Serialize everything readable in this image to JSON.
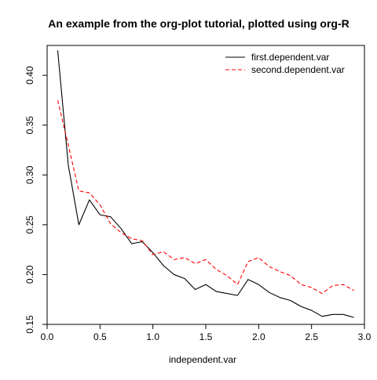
{
  "chart_data": {
    "type": "line",
    "title": "An example from the org-plot tutorial, plotted using org-R",
    "xlabel": "independent.var",
    "ylabel": "",
    "xlim": [
      0.0,
      3.0
    ],
    "ylim": [
      0.15,
      0.43
    ],
    "xticks": [
      0.0,
      0.5,
      1.0,
      1.5,
      2.0,
      2.5,
      3.0
    ],
    "xtick_labels": [
      "0.0",
      "0.5",
      "1.0",
      "1.5",
      "2.0",
      "2.5",
      "3.0"
    ],
    "yticks": [
      0.15,
      0.2,
      0.25,
      0.3,
      0.35,
      0.4
    ],
    "ytick_labels": [
      "0.15",
      "0.20",
      "0.25",
      "0.30",
      "0.35",
      "0.40"
    ],
    "legend_position": "top-right",
    "grid": false,
    "x": [
      0.1,
      0.2,
      0.3,
      0.4,
      0.5,
      0.6,
      0.7,
      0.8,
      0.9,
      1.0,
      1.1,
      1.2,
      1.3,
      1.4,
      1.5,
      1.6,
      1.7,
      1.8,
      1.9,
      2.0,
      2.1,
      2.2,
      2.3,
      2.4,
      2.5,
      2.6,
      2.7,
      2.8,
      2.9
    ],
    "series": [
      {
        "name": "first.dependent.var",
        "color": "#000000",
        "dash": "solid",
        "values": [
          0.425,
          0.31,
          0.25,
          0.275,
          0.26,
          0.258,
          0.246,
          0.231,
          0.233,
          0.222,
          0.209,
          0.2,
          0.196,
          0.185,
          0.19,
          0.183,
          0.181,
          0.179,
          0.195,
          0.19,
          0.182,
          0.177,
          0.174,
          0.168,
          0.164,
          0.158,
          0.16,
          0.16,
          0.157
        ]
      },
      {
        "name": "second.dependent.var",
        "color": "#ff0000",
        "dash": "dashed",
        "values": [
          0.375,
          0.33,
          0.284,
          0.282,
          0.27,
          0.251,
          0.242,
          0.236,
          0.234,
          0.22,
          0.223,
          0.215,
          0.217,
          0.211,
          0.215,
          0.205,
          0.199,
          0.19,
          0.213,
          0.217,
          0.208,
          0.203,
          0.199,
          0.19,
          0.187,
          0.181,
          0.189,
          0.19,
          0.184
        ]
      }
    ]
  }
}
